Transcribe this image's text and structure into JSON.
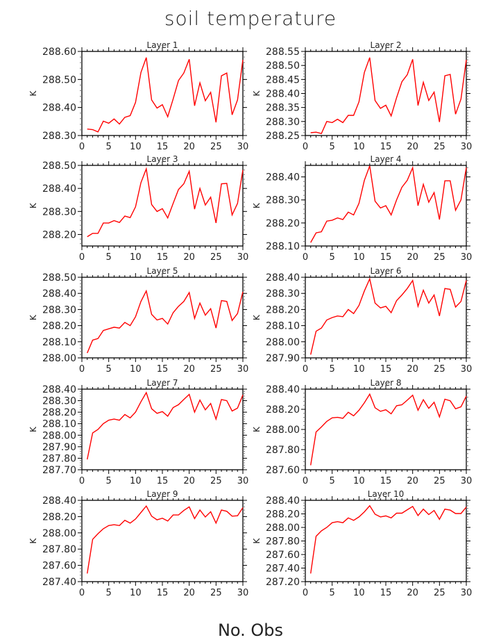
{
  "chart_data": {
    "type": "line",
    "title": "soil temperature",
    "xlabel": "No. Obs",
    "ylabel": "K",
    "xlim": [
      0,
      30
    ],
    "xticks": [
      0,
      5,
      10,
      15,
      20,
      25,
      30
    ],
    "line_color": "#ff0000",
    "x": [
      1,
      2,
      3,
      4,
      5,
      6,
      7,
      8,
      9,
      10,
      11,
      12,
      13,
      14,
      15,
      16,
      17,
      18,
      19,
      20,
      21,
      22,
      23,
      24,
      25,
      26,
      27,
      28,
      29,
      30
    ],
    "panels": [
      {
        "name": "Layer 1",
        "ylim": [
          288.3,
          288.6
        ],
        "yticks": [
          288.3,
          288.4,
          288.5,
          288.6
        ],
        "yticklabels": [
          "288.30",
          "288.40",
          "288.50",
          "288.60"
        ],
        "values": [
          288.323,
          288.321,
          288.313,
          288.351,
          288.344,
          288.359,
          288.341,
          288.365,
          288.371,
          288.418,
          288.525,
          288.578,
          288.427,
          288.398,
          288.41,
          288.367,
          288.43,
          288.496,
          288.523,
          288.572,
          288.406,
          288.488,
          288.424,
          288.454,
          288.347,
          288.513,
          288.523,
          288.374,
          288.427,
          288.57
        ]
      },
      {
        "name": "Layer 2",
        "ylim": [
          288.25,
          288.55
        ],
        "yticks": [
          288.25,
          288.3,
          288.35,
          288.4,
          288.45,
          288.5,
          288.55
        ],
        "yticklabels": [
          "288.25",
          "288.30",
          "288.35",
          "288.40",
          "288.45",
          "288.50",
          "288.55"
        ],
        "values": [
          288.26,
          288.262,
          288.257,
          288.3,
          288.296,
          288.308,
          288.296,
          288.322,
          288.322,
          288.37,
          288.475,
          288.528,
          288.375,
          288.347,
          288.358,
          288.32,
          288.385,
          288.442,
          288.467,
          288.522,
          288.357,
          288.44,
          288.375,
          288.405,
          288.298,
          288.463,
          288.468,
          288.326,
          288.38,
          288.52
        ]
      },
      {
        "name": "Layer 3",
        "ylim": [
          288.15,
          288.5
        ],
        "yticks": [
          288.2,
          288.3,
          288.4,
          288.5
        ],
        "yticklabels": [
          "288.20",
          "288.30",
          "288.40",
          "288.50"
        ],
        "values": [
          288.19,
          288.205,
          288.205,
          288.25,
          288.25,
          288.26,
          288.252,
          288.28,
          288.273,
          288.32,
          288.425,
          288.485,
          288.33,
          288.3,
          288.312,
          288.272,
          288.335,
          288.395,
          288.42,
          288.475,
          288.31,
          288.4,
          288.328,
          288.362,
          288.25,
          288.42,
          288.422,
          288.285,
          288.335,
          288.48
        ]
      },
      {
        "name": "Layer 4",
        "ylim": [
          288.1,
          288.45
        ],
        "yticks": [
          288.1,
          288.2,
          288.3,
          288.4
        ],
        "yticklabels": [
          "288.10",
          "288.20",
          "288.30",
          "288.40"
        ],
        "values": [
          288.115,
          288.157,
          288.162,
          288.208,
          288.212,
          288.222,
          288.215,
          288.247,
          288.235,
          288.285,
          288.385,
          288.448,
          288.295,
          288.265,
          288.275,
          288.235,
          288.3,
          288.355,
          288.385,
          288.44,
          288.275,
          288.368,
          288.29,
          288.332,
          288.215,
          288.383,
          288.383,
          288.255,
          288.3,
          288.44
        ]
      },
      {
        "name": "Layer 5",
        "ylim": [
          288.0,
          288.5
        ],
        "yticks": [
          288.0,
          288.1,
          288.2,
          288.3,
          288.4,
          288.5
        ],
        "yticklabels": [
          "288.00",
          "288.10",
          "288.20",
          "288.30",
          "288.40",
          "288.50"
        ],
        "values": [
          288.03,
          288.11,
          288.12,
          288.17,
          288.18,
          288.19,
          288.185,
          288.22,
          288.2,
          288.255,
          288.35,
          288.415,
          288.27,
          288.235,
          288.245,
          288.21,
          288.28,
          288.32,
          288.35,
          288.405,
          288.245,
          288.34,
          288.265,
          288.305,
          288.185,
          288.355,
          288.35,
          288.232,
          288.275,
          288.41
        ]
      },
      {
        "name": "Layer 6",
        "ylim": [
          287.9,
          288.4
        ],
        "yticks": [
          287.9,
          288.0,
          288.1,
          288.2,
          288.3,
          288.4
        ],
        "yticklabels": [
          "287.90",
          "288.00",
          "288.10",
          "288.20",
          "288.30",
          "288.40"
        ],
        "values": [
          287.92,
          288.065,
          288.085,
          288.135,
          288.15,
          288.16,
          288.155,
          288.2,
          288.175,
          288.225,
          288.315,
          288.39,
          288.24,
          288.21,
          288.22,
          288.18,
          288.255,
          288.29,
          288.33,
          288.38,
          288.22,
          288.32,
          288.24,
          288.29,
          288.16,
          288.33,
          288.325,
          288.215,
          288.25,
          288.38
        ]
      },
      {
        "name": "Layer 7",
        "ylim": [
          287.7,
          288.4
        ],
        "yticks": [
          287.7,
          287.8,
          287.9,
          288.0,
          288.1,
          288.2,
          288.3,
          288.4
        ],
        "yticklabels": [
          "287.70",
          "287.80",
          "287.90",
          "288.00",
          "288.10",
          "288.20",
          "288.30",
          "288.40"
        ],
        "values": [
          287.79,
          288.02,
          288.05,
          288.1,
          288.13,
          288.14,
          288.13,
          288.18,
          288.15,
          288.2,
          288.29,
          288.37,
          288.23,
          288.19,
          288.205,
          288.165,
          288.24,
          288.265,
          288.31,
          288.355,
          288.2,
          288.305,
          288.22,
          288.275,
          288.14,
          288.31,
          288.3,
          288.21,
          288.235,
          288.35
        ]
      },
      {
        "name": "Layer 8",
        "ylim": [
          287.6,
          288.4
        ],
        "yticks": [
          287.6,
          287.8,
          288.0,
          288.2,
          288.4
        ],
        "yticklabels": [
          "287.60",
          "287.80",
          "288.00",
          "288.20",
          "288.40"
        ],
        "values": [
          287.645,
          287.975,
          288.025,
          288.08,
          288.115,
          288.12,
          288.11,
          288.17,
          288.135,
          288.19,
          288.265,
          288.35,
          288.215,
          288.18,
          288.195,
          288.155,
          288.235,
          288.245,
          288.29,
          288.34,
          288.19,
          288.295,
          288.21,
          288.27,
          288.125,
          288.3,
          288.285,
          288.205,
          288.225,
          288.33
        ]
      },
      {
        "name": "Layer 9",
        "ylim": [
          287.4,
          288.4
        ],
        "yticks": [
          287.4,
          287.6,
          287.8,
          288.0,
          288.2,
          288.4
        ],
        "yticklabels": [
          "287.40",
          "287.60",
          "287.80",
          "288.00",
          "288.20",
          "288.40"
        ],
        "values": [
          287.5,
          287.92,
          287.99,
          288.05,
          288.09,
          288.1,
          288.09,
          288.155,
          288.12,
          288.17,
          288.25,
          288.33,
          288.205,
          288.16,
          288.18,
          288.145,
          288.22,
          288.22,
          288.275,
          288.32,
          288.175,
          288.28,
          288.195,
          288.26,
          288.12,
          288.28,
          288.265,
          288.205,
          288.21,
          288.31
        ]
      },
      {
        "name": "Layer 10",
        "ylim": [
          287.2,
          288.4
        ],
        "yticks": [
          287.2,
          287.4,
          287.6,
          287.8,
          288.0,
          288.2,
          288.4
        ],
        "yticklabels": [
          "287.20",
          "287.40",
          "287.60",
          "287.80",
          "288.00",
          "288.20",
          "288.40"
        ],
        "values": [
          287.32,
          287.87,
          287.95,
          288.0,
          288.07,
          288.085,
          288.07,
          288.14,
          288.105,
          288.155,
          288.23,
          288.32,
          288.195,
          288.155,
          288.17,
          288.14,
          288.21,
          288.21,
          288.26,
          288.31,
          288.175,
          288.27,
          288.19,
          288.25,
          288.12,
          288.27,
          288.255,
          288.205,
          288.205,
          288.3
        ]
      }
    ]
  }
}
